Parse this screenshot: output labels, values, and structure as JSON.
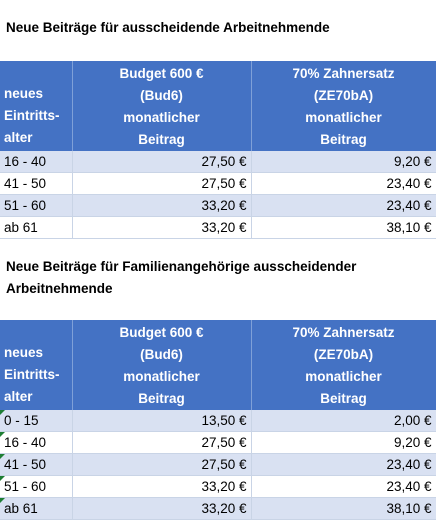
{
  "section1": {
    "title": "Neue Beiträge für ausscheidende Arbeitnehmende",
    "headers": {
      "col1": [
        "neues",
        "Eintritts-",
        "alter"
      ],
      "col2": [
        "Budget 600 €",
        "(Bud6)",
        "monatlicher",
        "Beitrag"
      ],
      "col3": [
        "70% Zahnersatz",
        "(ZE70bA)",
        "monatlicher",
        "Beitrag"
      ]
    },
    "rows": [
      {
        "age": "16 - 40",
        "budget": "27,50 €",
        "zahn": "9,20 €"
      },
      {
        "age": "41 - 50",
        "budget": "27,50 €",
        "zahn": "23,40 €"
      },
      {
        "age": "51 - 60",
        "budget": "33,20 €",
        "zahn": "23,40 €"
      },
      {
        "age": "ab 61",
        "budget": "33,20 €",
        "zahn": "38,10 €"
      }
    ]
  },
  "section2": {
    "title_line1": "Neue Beiträge für Familienangehörige ausscheidender",
    "title_line2": "Arbeitnehmende",
    "headers": {
      "col1": [
        "neues",
        "Eintritts-",
        "alter"
      ],
      "col2": [
        "Budget 600 €",
        "(Bud6)",
        "monatlicher",
        "Beitrag"
      ],
      "col3": [
        "70% Zahnersatz",
        "(ZE70bA)",
        "monatlicher",
        "Beitrag"
      ]
    },
    "rows": [
      {
        "age": "0 - 15",
        "budget": "13,50 €",
        "zahn": "2,00 €"
      },
      {
        "age": "16 - 40",
        "budget": "27,50 €",
        "zahn": "9,20 €"
      },
      {
        "age": "41 - 50",
        "budget": "27,50 €",
        "zahn": "23,40 €"
      },
      {
        "age": "51 - 60",
        "budget": "33,20 €",
        "zahn": "23,40 €"
      },
      {
        "age": "ab 61",
        "budget": "33,20 €",
        "zahn": "38,10 €"
      }
    ]
  },
  "colors": {
    "header_bg": "#4472c4",
    "header_text": "#ffffff",
    "band_row": "#d9e1f2",
    "plain_row": "#ffffff",
    "cell_flag": "#1e7e34"
  }
}
